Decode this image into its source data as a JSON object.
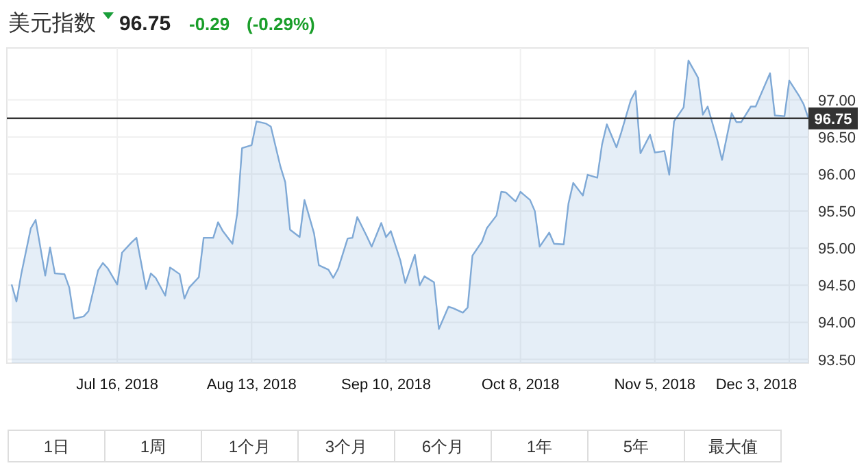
{
  "chart_data": {
    "type": "area",
    "title": "美元指数",
    "x": [
      "2018-06-24",
      "2018-06-25",
      "2018-06-26",
      "2018-06-28",
      "2018-06-29",
      "2018-07-01",
      "2018-07-02",
      "2018-07-03",
      "2018-07-05",
      "2018-07-06",
      "2018-07-07",
      "2018-07-09",
      "2018-07-10",
      "2018-07-12",
      "2018-07-13",
      "2018-07-14",
      "2018-07-16",
      "2018-07-17",
      "2018-07-19",
      "2018-07-20",
      "2018-07-22",
      "2018-07-23",
      "2018-07-24",
      "2018-07-26",
      "2018-07-27",
      "2018-07-29",
      "2018-07-30",
      "2018-07-31",
      "2018-08-02",
      "2018-08-03",
      "2018-08-05",
      "2018-08-06",
      "2018-08-07",
      "2018-08-09",
      "2018-08-10",
      "2018-08-11",
      "2018-08-13",
      "2018-08-14",
      "2018-08-16",
      "2018-08-17",
      "2018-08-19",
      "2018-08-20",
      "2018-08-21",
      "2018-08-23",
      "2018-08-24",
      "2018-08-26",
      "2018-08-27",
      "2018-08-29",
      "2018-08-30",
      "2018-08-31",
      "2018-09-02",
      "2018-09-03",
      "2018-09-04",
      "2018-09-06",
      "2018-09-07",
      "2018-09-09",
      "2018-09-10",
      "2018-09-11",
      "2018-09-13",
      "2018-09-14",
      "2018-09-16",
      "2018-09-17",
      "2018-09-18",
      "2018-09-20",
      "2018-09-21",
      "2018-09-23",
      "2018-09-24",
      "2018-09-26",
      "2018-09-27",
      "2018-09-28",
      "2018-09-30",
      "2018-10-01",
      "2018-10-03",
      "2018-10-04",
      "2018-10-05",
      "2018-10-07",
      "2018-10-08",
      "2018-10-10",
      "2018-10-11",
      "2018-10-12",
      "2018-10-14",
      "2018-10-15",
      "2018-10-17",
      "2018-10-18",
      "2018-10-19",
      "2018-10-21",
      "2018-10-22",
      "2018-10-24",
      "2018-10-25",
      "2018-10-26",
      "2018-10-28",
      "2018-10-29",
      "2018-10-31",
      "2018-11-01",
      "2018-11-02",
      "2018-11-04",
      "2018-11-05",
      "2018-11-07",
      "2018-11-08",
      "2018-11-09",
      "2018-11-11",
      "2018-11-12",
      "2018-11-14",
      "2018-11-15",
      "2018-11-16",
      "2018-11-18",
      "2018-11-19",
      "2018-11-21",
      "2018-11-22",
      "2018-11-23",
      "2018-11-25",
      "2018-11-26",
      "2018-11-27",
      "2018-11-29",
      "2018-11-30",
      "2018-12-02",
      "2018-12-03",
      "2018-12-05",
      "2018-12-06",
      "2018-12-07"
    ],
    "series": [
      {
        "color": "#7fa9d6",
        "values": [
          94.51,
          94.28,
          94.65,
          95.27,
          95.38,
          94.63,
          95.01,
          94.66,
          94.65,
          94.47,
          94.05,
          94.08,
          94.15,
          94.7,
          94.8,
          94.73,
          94.51,
          94.94,
          95.08,
          95.14,
          94.45,
          94.66,
          94.6,
          94.36,
          94.74,
          94.65,
          94.32,
          94.47,
          94.61,
          95.14,
          95.14,
          95.35,
          95.23,
          95.06,
          95.47,
          96.35,
          96.39,
          96.71,
          96.68,
          96.64,
          96.1,
          95.89,
          95.25,
          95.15,
          95.65,
          95.2,
          94.77,
          94.71,
          94.6,
          94.72,
          95.13,
          95.14,
          95.42,
          95.16,
          95.02,
          95.34,
          95.15,
          95.23,
          94.83,
          94.53,
          94.91,
          94.5,
          94.62,
          94.54,
          93.91,
          94.21,
          94.19,
          94.13,
          94.2,
          94.9,
          95.09,
          95.27,
          95.44,
          95.76,
          95.75,
          95.63,
          95.76,
          95.65,
          95.5,
          95.02,
          95.21,
          95.06,
          95.05,
          95.6,
          95.88,
          95.71,
          95.99,
          95.95,
          96.4,
          96.67,
          96.36,
          96.56,
          97.0,
          97.12,
          96.28,
          96.53,
          96.29,
          96.31,
          95.99,
          96.71,
          96.9,
          97.53,
          97.3,
          96.8,
          96.91,
          96.46,
          96.19,
          96.82,
          96.7,
          96.7,
          96.91,
          96.91,
          97.06,
          97.36,
          96.79,
          96.78,
          97.26,
          97.06,
          96.94,
          96.75
        ]
      }
    ],
    "xlim": [
      "2018-06-23",
      "2018-12-07"
    ],
    "xticks": [
      {
        "value": "2018-07-16",
        "label": "Jul 16, 2018"
      },
      {
        "value": "2018-08-13",
        "label": "Aug 13, 2018"
      },
      {
        "value": "2018-09-10",
        "label": "Sep 10, 2018"
      },
      {
        "value": "2018-10-08",
        "label": "Oct 8, 2018"
      },
      {
        "value": "2018-11-05",
        "label": "Nov 5, 2018"
      },
      {
        "value": "2018-12-03",
        "label": "Dec 3, 2018"
      }
    ],
    "ylim": [
      93.45,
      97.7
    ],
    "yticks": [
      {
        "value": 93.5,
        "label": "93.50"
      },
      {
        "value": 94,
        "label": "94.00"
      },
      {
        "value": 94.5,
        "label": "94.50"
      },
      {
        "value": 95,
        "label": "95.00"
      },
      {
        "value": 95.5,
        "label": "95.50"
      },
      {
        "value": 96,
        "label": "96.00"
      },
      {
        "value": 96.5,
        "label": "96.50"
      },
      {
        "value": 97,
        "label": "97.00"
      }
    ],
    "grid": true,
    "ref_lines": [
      {
        "axis": "y",
        "value": 96.75,
        "label": "96.75",
        "color": "#333333"
      }
    ],
    "annotations": [
      "96.75",
      "-0.29",
      "(-0.29%)",
      "1日",
      "1周",
      "1个月",
      "3个月",
      "6个月",
      "1年",
      "5年",
      "最大值"
    ]
  }
}
